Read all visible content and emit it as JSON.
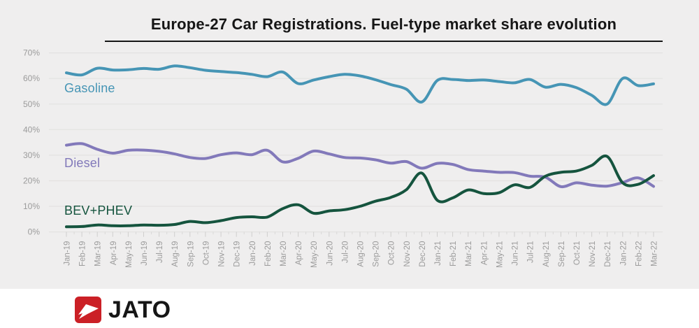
{
  "title": "Europe-27 Car Registrations. Fuel-type market share evolution",
  "logo": {
    "text": "JATO",
    "icon_color": "#cb2026"
  },
  "chart_data": {
    "type": "line",
    "title": "Europe-27 Car Registrations. Fuel-type market share evolution",
    "x": [
      "Jan-19",
      "Feb-19",
      "Mar-19",
      "Apr-19",
      "May-19",
      "Jun-19",
      "Jul-19",
      "Aug-19",
      "Sep-19",
      "Oct-19",
      "Nov-19",
      "Dec-19",
      "Jan-20",
      "Feb-20",
      "Mar-20",
      "Apr-20",
      "May-20",
      "Jun-20",
      "Jul-20",
      "Aug-20",
      "Sep-20",
      "Oct-20",
      "Nov-20",
      "Dec-20",
      "Jan-21",
      "Feb-21",
      "Mar-21",
      "Apr-21",
      "May-21",
      "Jun-21",
      "Jul-21",
      "Aug-21",
      "Sep-21",
      "Oct-21",
      "Nov-21",
      "Dec-21",
      "Jan-22",
      "Feb-22",
      "Mar-22"
    ],
    "y_ticks": [
      "0%",
      "10%",
      "20%",
      "30%",
      "40%",
      "50%",
      "60%",
      "70%"
    ],
    "ylim": [
      0,
      70
    ],
    "grid": "horizontal",
    "legend_position": "inline-left",
    "series": [
      {
        "name": "Gasoline",
        "color": "#4695b5",
        "values": [
          62.2,
          61.4,
          64.0,
          63.3,
          63.4,
          63.9,
          63.6,
          64.9,
          64.2,
          63.2,
          62.7,
          62.3,
          61.6,
          60.7,
          62.5,
          58.0,
          59.4,
          60.7,
          61.6,
          61.0,
          59.5,
          57.6,
          55.8,
          50.8,
          59.2,
          59.6,
          59.2,
          59.4,
          58.8,
          58.3,
          59.6,
          56.6,
          57.7,
          56.4,
          53.4,
          50.0,
          60.0,
          57.2,
          57.9
        ]
      },
      {
        "name": "Diesel",
        "color": "#8279ba",
        "values": [
          33.9,
          34.5,
          32.3,
          30.8,
          31.9,
          32.0,
          31.5,
          30.5,
          29.1,
          28.7,
          30.2,
          30.9,
          30.2,
          31.9,
          27.4,
          28.8,
          31.6,
          30.5,
          29.1,
          28.9,
          28.2,
          26.9,
          27.5,
          24.9,
          26.8,
          26.4,
          24.4,
          23.8,
          23.3,
          23.2,
          21.8,
          21.4,
          17.7,
          19.2,
          18.3,
          17.9,
          19.3,
          21.1,
          17.8
        ]
      },
      {
        "name": "BEV+PHEV",
        "color": "#15543e",
        "values": [
          2.0,
          2.1,
          2.7,
          2.4,
          2.4,
          2.7,
          2.6,
          2.9,
          4.1,
          3.6,
          4.4,
          5.6,
          5.9,
          5.8,
          9.1,
          10.6,
          7.3,
          8.2,
          8.7,
          10.0,
          12.0,
          13.5,
          16.5,
          23.0,
          12.4,
          13.3,
          16.4,
          15.0,
          15.3,
          18.4,
          17.4,
          21.8,
          23.3,
          23.8,
          26.0,
          29.5,
          19.2,
          18.6,
          22.0
        ]
      }
    ]
  }
}
